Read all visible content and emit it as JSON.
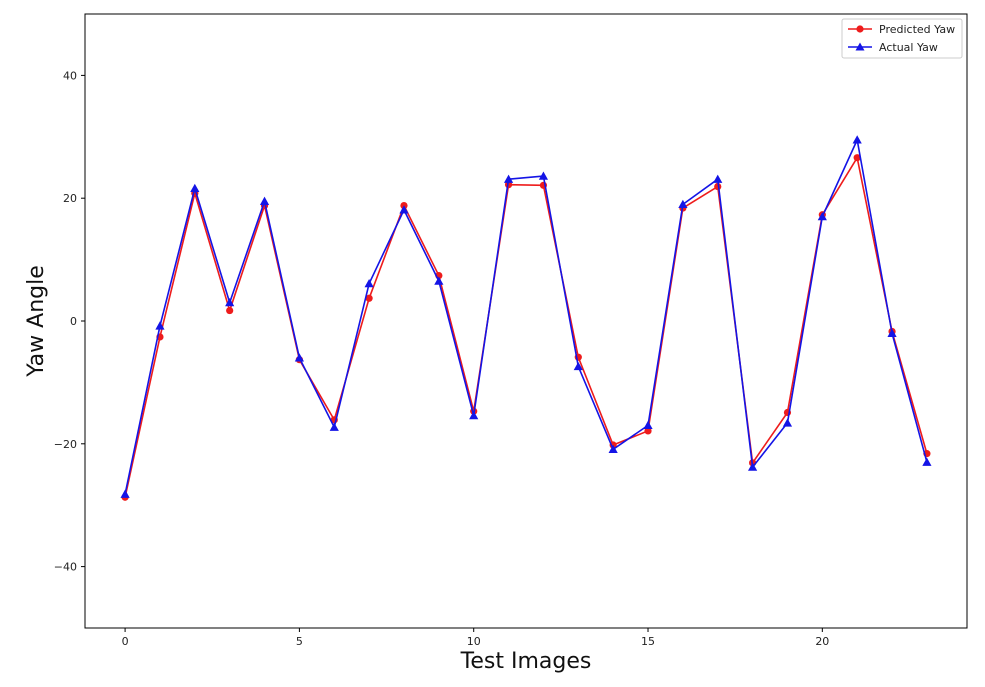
{
  "chart_data": {
    "type": "line",
    "title": "",
    "xlabel": "Test Images",
    "ylabel": "Yaw Angle",
    "xlim": [
      -1.15,
      24.15
    ],
    "ylim": [
      -50,
      50
    ],
    "xticks": [
      0,
      5,
      10,
      15,
      20
    ],
    "xtick_labels": [
      "0",
      "5",
      "10",
      "15",
      "20"
    ],
    "yticks": [
      -40,
      -20,
      0,
      20,
      40
    ],
    "ytick_labels": [
      "−40",
      "−20",
      "0",
      "20",
      "40"
    ],
    "grid": false,
    "legend_position": "top-right",
    "x": [
      0,
      1,
      2,
      3,
      4,
      5,
      6,
      7,
      8,
      9,
      10,
      11,
      12,
      13,
      14,
      15,
      16,
      17,
      18,
      19,
      20,
      21,
      22,
      23
    ],
    "series": [
      {
        "name": "Predicted Yaw",
        "color": "#ee1c1c",
        "marker": "circle",
        "values": [
          -28.7,
          -2.6,
          20.8,
          1.7,
          18.8,
          -6.3,
          -16.1,
          3.7,
          18.8,
          7.4,
          -14.7,
          22.2,
          22.1,
          -5.9,
          -20.2,
          -17.9,
          18.4,
          21.9,
          -23.1,
          -14.9,
          17.3,
          26.6,
          -1.7,
          -21.6
        ]
      },
      {
        "name": "Actual Yaw",
        "color": "#1414e6",
        "marker": "triangle",
        "values": [
          -28.2,
          -0.8,
          21.6,
          3.0,
          19.5,
          -6.0,
          -17.3,
          6.1,
          18.1,
          6.5,
          -15.4,
          23.1,
          23.6,
          -7.4,
          -20.9,
          -17.0,
          19.0,
          23.1,
          -23.8,
          -16.6,
          17.0,
          29.5,
          -2.0,
          -23.0
        ]
      }
    ]
  }
}
